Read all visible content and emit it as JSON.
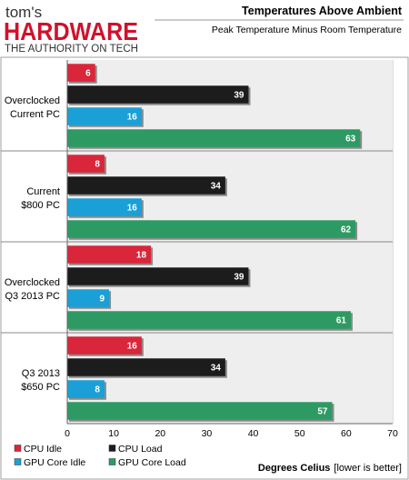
{
  "logo": {
    "brand_small": "tom's",
    "brand_big": "HARDWARE",
    "tagline": "THE AUTHORITY ON TECH"
  },
  "chart_data": {
    "type": "bar",
    "orientation": "horizontal",
    "title": "Temperatures Above Ambient",
    "subtitle": "Peak Temperature Minus Room Temperature",
    "xlabel": "Degrees Celius",
    "xlabel_note": "[lower is better]",
    "ylabel": "",
    "xlim": [
      0,
      70
    ],
    "xticks": [
      0,
      10,
      20,
      30,
      40,
      50,
      60,
      70
    ],
    "grid": true,
    "legend_position": "bottom-left",
    "categories": [
      [
        "Overclocked",
        "Current PC"
      ],
      [
        "Current",
        "$800 PC"
      ],
      [
        "Overclocked",
        "Q3 2013 PC"
      ],
      [
        "Q3 2013",
        "$650 PC"
      ]
    ],
    "series": [
      {
        "name": "CPU Idle",
        "color": "#d9263a",
        "values": [
          6,
          8,
          18,
          16
        ]
      },
      {
        "name": "CPU Load",
        "color": "#1c1c1c",
        "values": [
          39,
          34,
          39,
          34
        ]
      },
      {
        "name": "GPU Core Idle",
        "color": "#1aa0d6",
        "values": [
          16,
          16,
          9,
          8
        ]
      },
      {
        "name": "GPU Core Load",
        "color": "#2e9a63",
        "values": [
          63,
          62,
          61,
          57
        ]
      }
    ]
  }
}
